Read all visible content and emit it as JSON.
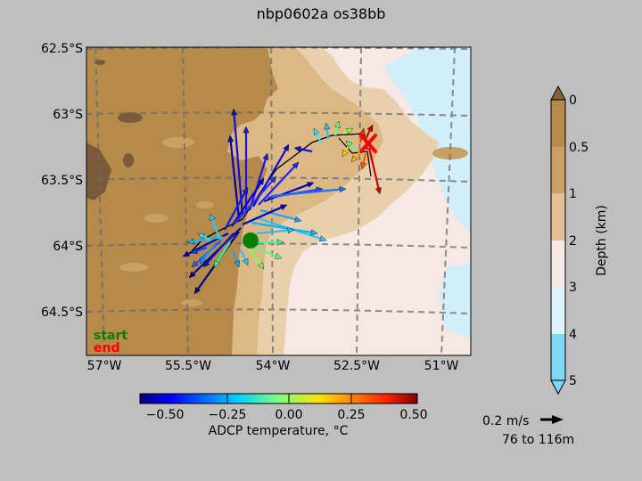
{
  "title": "nbp0602a os38bb",
  "map": {
    "lat_labels": [
      "62.5°S",
      "63°S",
      "63.5°S",
      "64°S",
      "64.5°S"
    ],
    "lon_labels": [
      "57°W",
      "55.5°W",
      "54°W",
      "52.5°W",
      "51°W"
    ],
    "legend": {
      "start_label": "start",
      "end_label": "end",
      "start_color": "#008000",
      "end_color": "#ff0000"
    },
    "colors": {
      "land": "#b68a4a",
      "shelf": "#dcb884",
      "slope": "#e9d0ac",
      "deep": "#f6e8e4",
      "abyss": "#d2eef9",
      "grid": "#6b6b6b"
    }
  },
  "depth_colorbar": {
    "label": "Depth (km)",
    "ticks": [
      "0",
      "0.5",
      "1",
      "2",
      "3",
      "4",
      "5"
    ],
    "colors": [
      "#b68a4a",
      "#c8a064",
      "#e0c096",
      "#f6e8e4",
      "#ddf2fa",
      "#7fd6f4"
    ]
  },
  "temp_colorbar": {
    "label": "ADCP temperature, °C",
    "ticks": [
      "−0.50",
      "−0.25",
      "0.00",
      "0.25",
      "0.50"
    ]
  },
  "scale": {
    "speed_label": "0.2 m/s",
    "depth_range": "76 to 116m"
  }
}
